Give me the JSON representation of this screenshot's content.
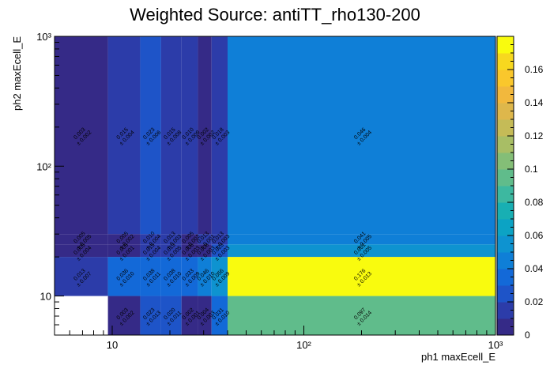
{
  "chart_data": {
    "type": "heatmap",
    "title": "Weighted Source: antiTT_rho130-200",
    "xlabel": "ph1 maxEcell_E",
    "ylabel": "ph2 maxEcell_E",
    "x_scale": "log",
    "y_scale": "log",
    "xlim": [
      5,
      1000
    ],
    "ylim": [
      5,
      1000
    ],
    "zlim": [
      0,
      0.18
    ],
    "x_ticks": [
      {
        "value": 10,
        "label": "10"
      },
      {
        "value": 100,
        "label": "10²"
      },
      {
        "value": 1000,
        "label": "10³"
      }
    ],
    "y_ticks": [
      {
        "value": 10,
        "label": "10"
      },
      {
        "value": 100,
        "label": "10²"
      },
      {
        "value": 1000,
        "label": "10³"
      }
    ],
    "colorbar_ticks": [
      "0",
      "0.02",
      "0.04",
      "0.06",
      "0.08",
      "0.1",
      "0.12",
      "0.14",
      "0.16"
    ],
    "palette": [
      "#352a87",
      "#2c3ca9",
      "#1e54c8",
      "#1369d8",
      "#0f7fd7",
      "#0e93d0",
      "#0ca3c4",
      "#18afb3",
      "#3db8a0",
      "#60bc8b",
      "#84be77",
      "#a8be65",
      "#c5bb57",
      "#deb74b",
      "#f2b83d",
      "#fac72c",
      "#f7d81f",
      "#f9fb0e"
    ],
    "x_edges": [
      5,
      9.5,
      14,
      18,
      23,
      28,
      33,
      40,
      1000
    ],
    "y_edges": [
      5,
      10,
      20,
      25,
      30,
      1000
    ],
    "cells": [
      {
        "x0": 9.5,
        "x1": 14,
        "y0": 5,
        "y1": 10,
        "value": 0.003,
        "error": 0.002,
        "label": "0.003 ± 0.002"
      },
      {
        "x0": 14,
        "x1": 18,
        "y0": 5,
        "y1": 10,
        "value": 0.023,
        "error": 0.013,
        "label": "0.023 ± 0.013"
      },
      {
        "x0": 18,
        "x1": 23,
        "y0": 5,
        "y1": 10,
        "value": 0.02,
        "error": 0.011,
        "label": "0.020 ± 0.011"
      },
      {
        "x0": 23,
        "x1": 28,
        "y0": 5,
        "y1": 10,
        "value": 0.002,
        "error": 0.001,
        "label": "0.002 ± 0.001"
      },
      {
        "x0": 28,
        "x1": 33,
        "y0": 5,
        "y1": 10,
        "value": 0.004,
        "error": 0.003,
        "label": "0.004 ± 0.003"
      },
      {
        "x0": 33,
        "x1": 40,
        "y0": 5,
        "y1": 10,
        "value": 0.031,
        "error": 0.01,
        "label": "0.031 ± 0.010"
      },
      {
        "x0": 40,
        "x1": 1000,
        "y0": 5,
        "y1": 10,
        "value": 0.097,
        "error": 0.014,
        "label": "0.097 ± 0.014"
      },
      {
        "x0": 5,
        "x1": 9.5,
        "y0": 10,
        "y1": 20,
        "value": 0.013,
        "error": 0.007,
        "label": "0.013 ± 0.007"
      },
      {
        "x0": 9.5,
        "x1": 14,
        "y0": 10,
        "y1": 20,
        "value": 0.036,
        "error": 0.01,
        "label": "0.036 ± 0.010"
      },
      {
        "x0": 14,
        "x1": 18,
        "y0": 10,
        "y1": 20,
        "value": 0.038,
        "error": 0.011,
        "label": "0.038 ± 0.011"
      },
      {
        "x0": 18,
        "x1": 23,
        "y0": 10,
        "y1": 20,
        "value": 0.038,
        "error": 0.01,
        "label": "0.038 ± 0.010"
      },
      {
        "x0": 23,
        "x1": 28,
        "y0": 10,
        "y1": 20,
        "value": 0.033,
        "error": 0.009,
        "label": "0.033 ± 0.009"
      },
      {
        "x0": 28,
        "x1": 33,
        "y0": 10,
        "y1": 20,
        "value": 0.046,
        "error": 0.01,
        "label": "0.046 ± 0.010"
      },
      {
        "x0": 33,
        "x1": 40,
        "y0": 10,
        "y1": 20,
        "value": 0.056,
        "error": 0.009,
        "label": "0.056 ± 0.009"
      },
      {
        "x0": 40,
        "x1": 1000,
        "y0": 10,
        "y1": 20,
        "value": 0.176,
        "error": 0.013,
        "label": "0.176 ± 0.013"
      },
      {
        "x0": 5,
        "x1": 9.5,
        "y0": 20,
        "y1": 25,
        "value": 0.005,
        "error": 0.004,
        "label": "0.005 ± 0.004"
      },
      {
        "x0": 9.5,
        "x1": 14,
        "y0": 20,
        "y1": 25,
        "value": 0.005,
        "error": 0.001,
        "label": "0.005 ± 0.001"
      },
      {
        "x0": 14,
        "x1": 18,
        "y0": 20,
        "y1": 25,
        "value": 0.015,
        "error": 0.004,
        "label": "0.015 ± 0.004"
      },
      {
        "x0": 18,
        "x1": 23,
        "y0": 20,
        "y1": 25,
        "value": 0.013,
        "error": 0.005,
        "label": "0.013 ± 0.005"
      },
      {
        "x0": 23,
        "x1": 28,
        "y0": 20,
        "y1": 25,
        "value": 0.006,
        "error": 0.003,
        "label": "0.006 ± 0.003"
      },
      {
        "x0": 28,
        "x1": 33,
        "y0": 20,
        "y1": 25,
        "value": 0.008,
        "error": 0.003,
        "label": "0.008 ± 0.003"
      },
      {
        "x0": 33,
        "x1": 40,
        "y0": 20,
        "y1": 25,
        "value": 0.023,
        "error": 0.003,
        "label": "0.023 ± 0.003"
      },
      {
        "x0": 40,
        "x1": 1000,
        "y0": 20,
        "y1": 25,
        "value": 0.051,
        "error": 0.005,
        "label": "0.051 ± 0.005"
      },
      {
        "x0": 5,
        "x1": 9.5,
        "y0": 25,
        "y1": 30,
        "value": 0.005,
        "error": 0.005,
        "label": "0.005 ± 0.005"
      },
      {
        "x0": 9.5,
        "x1": 14,
        "y0": 25,
        "y1": 30,
        "value": 0.005,
        "error": 0.002,
        "label": "0.005 ± 0.002"
      },
      {
        "x0": 14,
        "x1": 18,
        "y0": 25,
        "y1": 30,
        "value": 0.01,
        "error": 0.004,
        "label": "0.010 ± 0.004"
      },
      {
        "x0": 18,
        "x1": 23,
        "y0": 25,
        "y1": 30,
        "value": 0.013,
        "error": 0.003,
        "label": "0.013 ± 0.003"
      },
      {
        "x0": 23,
        "x1": 28,
        "y0": 25,
        "y1": 30,
        "value": 0.005,
        "error": 0.002,
        "label": "0.005 ± 0.002"
      },
      {
        "x0": 28,
        "x1": 33,
        "y0": 25,
        "y1": 30,
        "value": 0.013,
        "error": 0.001,
        "label": "0.013 ± 0.001"
      },
      {
        "x0": 33,
        "x1": 40,
        "y0": 25,
        "y1": 30,
        "value": 0.013,
        "error": 0.003,
        "label": "0.013 ± 0.003"
      },
      {
        "x0": 40,
        "x1": 1000,
        "y0": 25,
        "y1": 30,
        "value": 0.041,
        "error": 0.005,
        "label": "0.041 ± 0.005"
      },
      {
        "x0": 5,
        "x1": 9.5,
        "y0": 30,
        "y1": 1000,
        "value": 0.003,
        "error": 0.002,
        "label": "0.003 ± 0.002"
      },
      {
        "x0": 9.5,
        "x1": 14,
        "y0": 30,
        "y1": 1000,
        "value": 0.015,
        "error": 0.004,
        "label": "0.015 ± 0.004"
      },
      {
        "x0": 14,
        "x1": 18,
        "y0": 30,
        "y1": 1000,
        "value": 0.023,
        "error": 0.006,
        "label": "0.023 ± 0.006"
      },
      {
        "x0": 18,
        "x1": 23,
        "y0": 30,
        "y1": 1000,
        "value": 0.015,
        "error": 0.008,
        "label": "0.015 ± 0.008"
      },
      {
        "x0": 23,
        "x1": 28,
        "y0": 30,
        "y1": 1000,
        "value": 0.01,
        "error": 0.009,
        "label": "0.010 ± 0.009"
      },
      {
        "x0": 28,
        "x1": 33,
        "y0": 30,
        "y1": 1000,
        "value": 0.002,
        "error": 0.002,
        "label": "0.002 ± 0.002"
      },
      {
        "x0": 33,
        "x1": 40,
        "y0": 30,
        "y1": 1000,
        "value": 0.018,
        "error": 0.003,
        "label": "0.018 ± 0.003"
      },
      {
        "x0": 40,
        "x1": 1000,
        "y0": 30,
        "y1": 1000,
        "value": 0.046,
        "error": 0.004,
        "label": "0.046 ± 0.004"
      }
    ]
  }
}
